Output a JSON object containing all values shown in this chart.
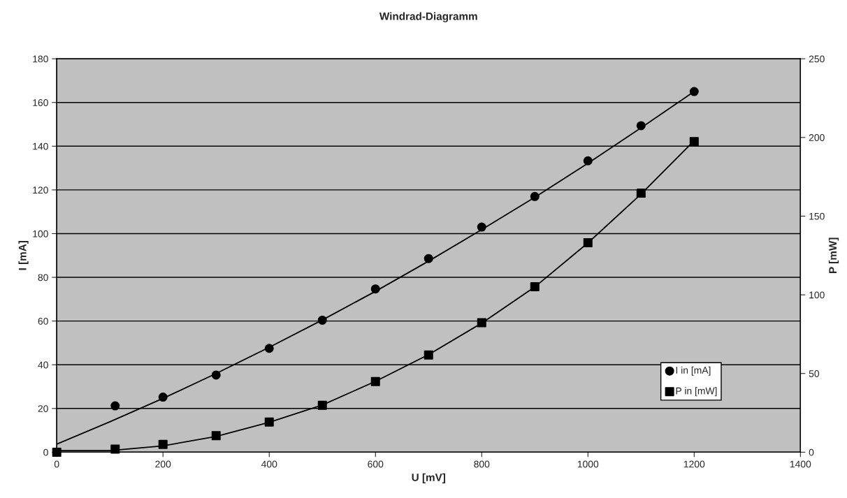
{
  "chart_data": {
    "type": "scatter",
    "title": "Windrad-Diagramm",
    "xlabel": "U [mV]",
    "ylabel": "I [mA]",
    "y2label": "P [mW]",
    "x": [
      0,
      110,
      200,
      300,
      400,
      500,
      600,
      700,
      800,
      900,
      1000,
      1100,
      1200
    ],
    "series": [
      {
        "name": "I in [mA]",
        "marker": "circle",
        "color": "#000000",
        "values": [
          null,
          21.2,
          25.2,
          35.3,
          47.5,
          60.4,
          74.7,
          88.6,
          103,
          117,
          133.3,
          149.4,
          165
        ]
      },
      {
        "name": "P in [mW]",
        "marker": "square",
        "axis": "y2",
        "color": "#000000",
        "values": [
          0,
          2,
          5,
          10.5,
          19.2,
          29.8,
          44.9,
          61.8,
          82.3,
          105.2,
          133.1,
          164.6,
          197.4
        ]
      },
      {
        "type": "line",
        "marker": "none",
        "color": "#000000",
        "x": [
          0,
          100,
          200,
          300,
          400,
          500,
          600,
          700,
          800,
          900,
          1000,
          1100,
          1200
        ],
        "values": [
          3.7,
          13.9,
          24.6,
          36,
          48,
          60.5,
          73.6,
          87.4,
          101.8,
          116.6,
          132.2,
          148.4,
          165
        ]
      },
      {
        "type": "line",
        "marker": "none",
        "axis": "y2",
        "color": "#000000",
        "x": [
          0,
          100,
          200,
          300,
          400,
          500,
          600,
          700,
          800,
          900,
          1000,
          1100,
          1200
        ],
        "values": [
          1,
          1,
          4,
          10,
          19,
          30,
          45,
          62,
          82,
          105,
          133,
          164,
          198
        ]
      }
    ],
    "xlim": [
      0,
      1400
    ],
    "xticks": [
      0,
      200,
      400,
      600,
      800,
      1000,
      1200,
      1400
    ],
    "ylim": [
      0,
      180
    ],
    "yticks": [
      0,
      20,
      40,
      60,
      80,
      100,
      120,
      140,
      160,
      180
    ],
    "y2lim": [
      0,
      250
    ],
    "y2ticks": [
      0,
      50,
      100,
      150,
      200,
      250
    ],
    "grid": "y",
    "legend": "bottom right",
    "line_style": "solid"
  }
}
